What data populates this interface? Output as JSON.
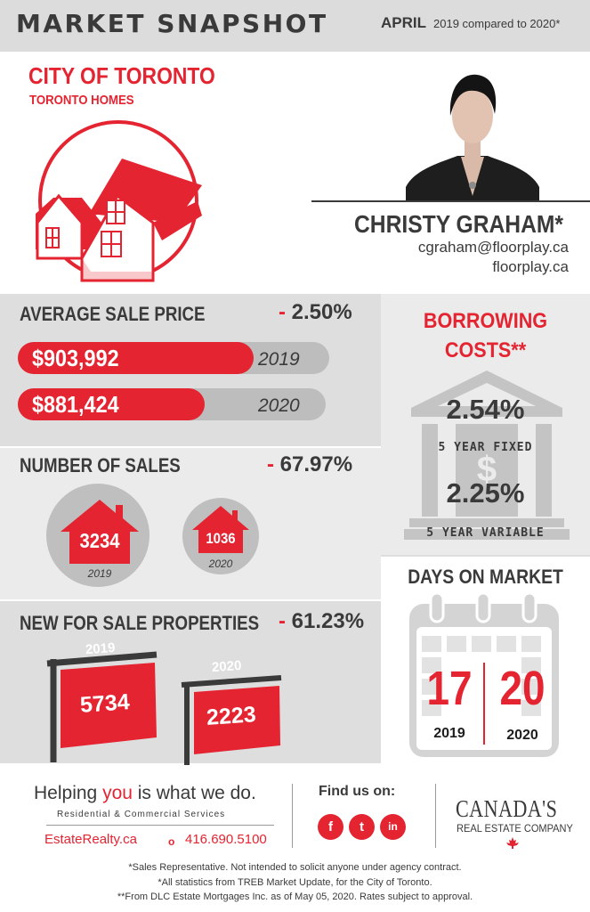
{
  "header": {
    "title": "MARKET SNAPSHOT",
    "month": "APRIL",
    "comparison": "2019 compared to 2020*"
  },
  "city": {
    "title": "CITY OF TORONTO",
    "subtitle": "TORONTO HOMES"
  },
  "agent": {
    "name": "CHRISTY GRAHAM*",
    "email": "cgraham@floorplay.ca",
    "website": "floorplay.ca"
  },
  "average_sale_price": {
    "title": "AVERAGE SALE PRICE",
    "change": "- 2.50%",
    "rows": [
      {
        "value": "$903,992",
        "year": "2019"
      },
      {
        "value": "$881,424",
        "year": "2020"
      }
    ]
  },
  "number_of_sales": {
    "title": "NUMBER OF SALES",
    "change": "- 67.97%",
    "items": [
      {
        "value": "3234",
        "year": "2019"
      },
      {
        "value": "1036",
        "year": "2020"
      }
    ]
  },
  "new_for_sale": {
    "title": "NEW FOR SALE PROPERTIES",
    "change": "- 61.23%",
    "items": [
      {
        "value": "5734",
        "year": "2019"
      },
      {
        "value": "2223",
        "year": "2020"
      }
    ]
  },
  "borrowing_costs": {
    "title_line1": "BORROWING",
    "title_line2": "COSTS**",
    "rates": [
      {
        "value": "2.54%",
        "label": "5 YEAR FIXED"
      },
      {
        "value": "2.25%",
        "label": "5 YEAR VARIABLE"
      }
    ],
    "icon": "bank-icon"
  },
  "days_on_market": {
    "title": "DAYS ON MARKET",
    "items": [
      {
        "value": "17",
        "year": "2019"
      },
      {
        "value": "20",
        "year": "2020"
      }
    ],
    "icon": "calendar-icon"
  },
  "footer": {
    "tagline_pre": "Helping ",
    "tagline_you": "you",
    "tagline_post": " is what we do.",
    "services": "Residential & Commercial Services",
    "site": "EstateRealty.ca",
    "phone_marker": "o",
    "phone": "416.690.5100",
    "find_us": "Find us on:",
    "social": [
      "f",
      "t",
      "in"
    ],
    "brand_name": "CANADA'S",
    "brand_sub": "REAL ESTATE COMPANY"
  },
  "notes": [
    "*Sales Representative. Not intended to solicit anyone under agency contract.",
    "*All statistics from TREB Market Update, for the City of Toronto.",
    "**From DLC Estate Mortgages Inc. as of May 05, 2020. Rates subject to approval."
  ],
  "colors": {
    "accent": "#e42431",
    "panel": "#dedede",
    "text": "#3a3a3a"
  }
}
